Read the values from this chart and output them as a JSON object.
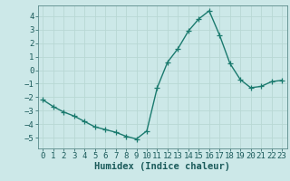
{
  "x": [
    0,
    1,
    2,
    3,
    4,
    5,
    6,
    7,
    8,
    9,
    10,
    11,
    12,
    13,
    14,
    15,
    16,
    17,
    18,
    19,
    20,
    21,
    22,
    23
  ],
  "y": [
    -2.2,
    -2.7,
    -3.1,
    -3.4,
    -3.8,
    -4.2,
    -4.4,
    -4.6,
    -4.9,
    -5.1,
    -4.5,
    -1.3,
    0.6,
    1.6,
    2.9,
    3.8,
    4.4,
    2.6,
    0.5,
    -0.7,
    -1.3,
    -1.2,
    -0.85,
    -0.75
  ],
  "line_color": "#1a7a6e",
  "marker": "+",
  "marker_size": 4,
  "bg_color": "#cce8e8",
  "grid_color": "#b8d8d4",
  "xlabel": "Humidex (Indice chaleur)",
  "ylim": [
    -5.8,
    4.8
  ],
  "xlim": [
    -0.5,
    23.5
  ],
  "yticks": [
    -5,
    -4,
    -3,
    -2,
    -1,
    0,
    1,
    2,
    3,
    4
  ],
  "xticks": [
    0,
    1,
    2,
    3,
    4,
    5,
    6,
    7,
    8,
    9,
    10,
    11,
    12,
    13,
    14,
    15,
    16,
    17,
    18,
    19,
    20,
    21,
    22,
    23
  ],
  "tick_fontsize": 6.5,
  "xlabel_fontsize": 7.5,
  "line_width": 1.0
}
